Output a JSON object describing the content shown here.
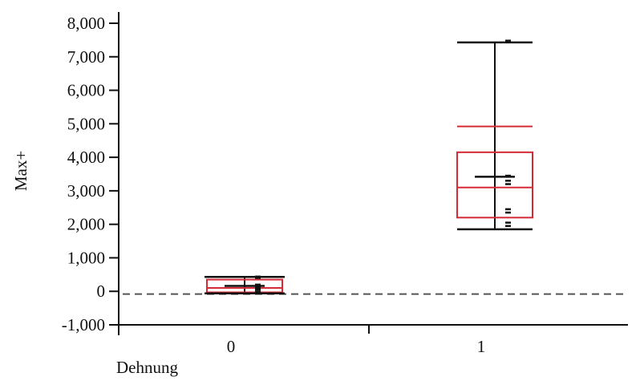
{
  "chart_data": {
    "type": "box",
    "ylabel": "Max+",
    "xlabel": "Dehnung",
    "ylim": [
      -1000,
      8000
    ],
    "yticks": [
      "-1,000",
      "0",
      "1,000",
      "2,000",
      "3,000",
      "4,000",
      "5,000",
      "6,000",
      "7,000",
      "8,000"
    ],
    "ytick_values": [
      -1000,
      0,
      1000,
      2000,
      3000,
      4000,
      5000,
      6000,
      7000,
      8000
    ],
    "categories": [
      "0",
      "1"
    ],
    "reference_line": -80,
    "groups": [
      {
        "category": "0",
        "whisker_low": -60,
        "whisker_high": 430,
        "q1": -30,
        "median": 100,
        "q3": 350,
        "mean": 160,
        "mean_error_high": 420,
        "sd_line": null,
        "points": [
          440,
          400,
          200,
          150,
          120,
          80,
          40,
          -20,
          -50
        ]
      },
      {
        "category": "1",
        "whisker_low": 1850,
        "whisker_high": 7430,
        "q1": 2200,
        "median": 3100,
        "q3": 4150,
        "mean": 3420,
        "mean_error_high": null,
        "sd_line": 4920,
        "points": [
          7480,
          3450,
          3300,
          3200,
          2450,
          2350,
          2050,
          1950
        ]
      }
    ],
    "colors": {
      "box": "#d62a36",
      "whisker": "#111111",
      "axis": "#111111",
      "reference": "#555555"
    }
  }
}
